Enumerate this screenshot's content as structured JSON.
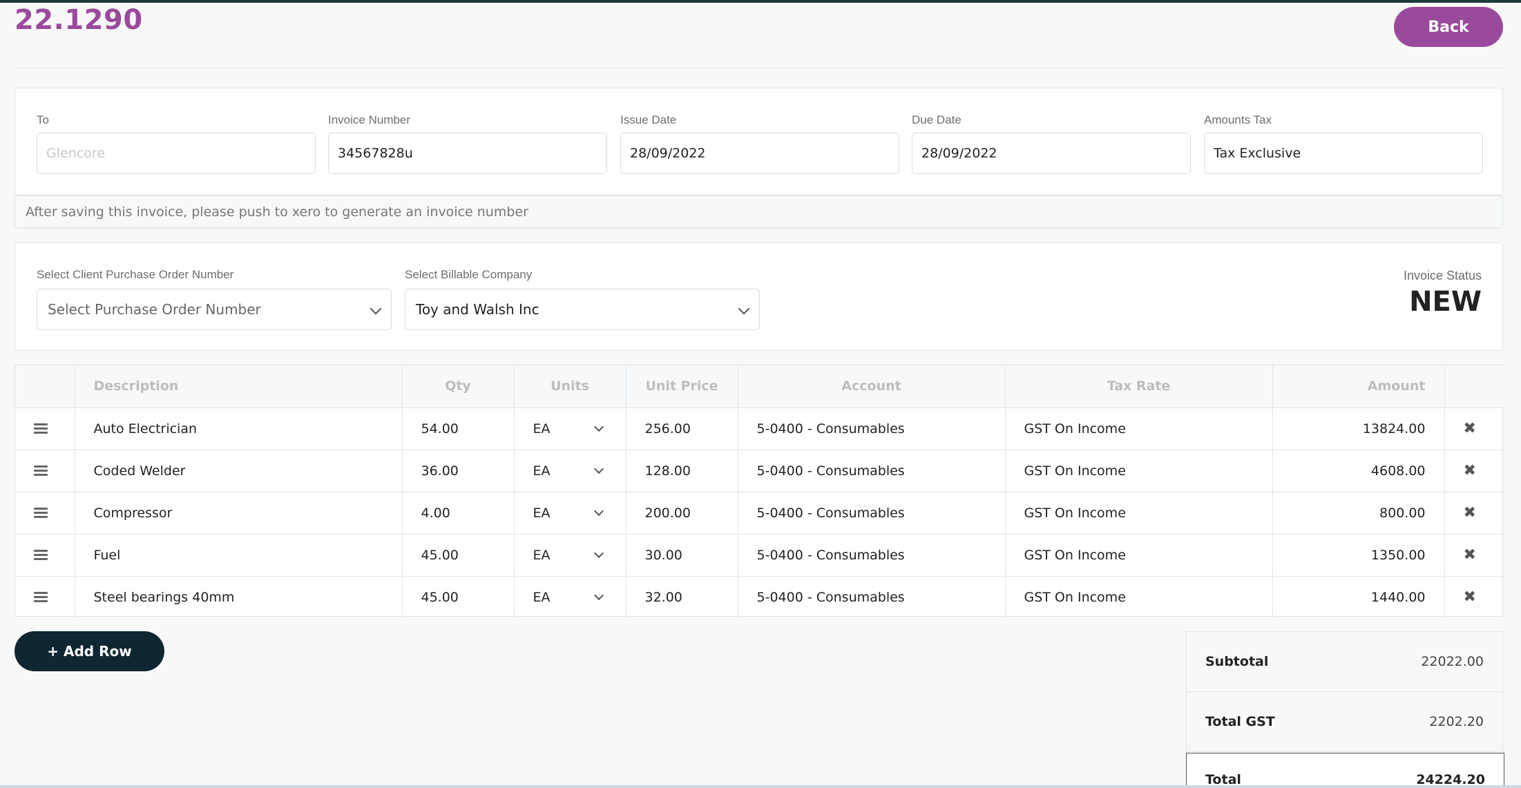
{
  "header": {
    "title": "22.1290",
    "back_label": "Back"
  },
  "invoice_fields": [
    {
      "label": "To",
      "value": "",
      "placeholder": "Glencore"
    },
    {
      "label": "Invoice Number",
      "value": "34567828u",
      "placeholder": ""
    },
    {
      "label": "Issue Date",
      "value": "28/09/2022",
      "placeholder": ""
    },
    {
      "label": "Due Date",
      "value": "28/09/2022",
      "placeholder": ""
    },
    {
      "label": "Amounts Tax",
      "value": "Tax Exclusive",
      "placeholder": ""
    }
  ],
  "note": "After saving this invoice, please push to xero to generate an invoice number",
  "purchase_order": {
    "label": "Select Client Purchase Order Number",
    "value": "Select Purchase Order Number"
  },
  "billable_company": {
    "label": "Select Billable Company",
    "value": "Toy and Walsh Inc"
  },
  "status": {
    "label": "Invoice Status",
    "value": "NEW"
  },
  "table": {
    "columns": [
      "",
      "Description",
      "Qty",
      "Units",
      "Unit Price",
      "Account",
      "Tax Rate",
      "Amount",
      ""
    ],
    "rows": [
      {
        "description": "Auto Electrician",
        "qty": "54.00",
        "units": "EA",
        "unit_price": "256.00",
        "account": "5-0400 - Consumables",
        "tax_rate": "GST On Income",
        "amount": "13824.00"
      },
      {
        "description": "Coded Welder",
        "qty": "36.00",
        "units": "EA",
        "unit_price": "128.00",
        "account": "5-0400 - Consumables",
        "tax_rate": "GST On Income",
        "amount": "4608.00"
      },
      {
        "description": "Compressor",
        "qty": "4.00",
        "units": "EA",
        "unit_price": "200.00",
        "account": "5-0400 - Consumables",
        "tax_rate": "GST On Income",
        "amount": "800.00"
      },
      {
        "description": "Fuel",
        "qty": "45.00",
        "units": "EA",
        "unit_price": "30.00",
        "account": "5-0400 - Consumables",
        "tax_rate": "GST On Income",
        "amount": "1350.00"
      },
      {
        "description": "Steel bearings 40mm",
        "qty": "45.00",
        "units": "EA",
        "unit_price": "32.00",
        "account": "5-0400 - Consumables",
        "tax_rate": "GST On Income",
        "amount": "1440.00"
      }
    ]
  },
  "add_row_label": "+ Add Row",
  "totals": {
    "subtotal_label": "Subtotal",
    "subtotal_value": "22022.00",
    "gst_label": "Total GST",
    "gst_value": "2202.20",
    "total_label": "Total",
    "total_value": "24224.20"
  },
  "colors": {
    "accent": "#9a4a9c",
    "dark_button": "#0f2733"
  }
}
